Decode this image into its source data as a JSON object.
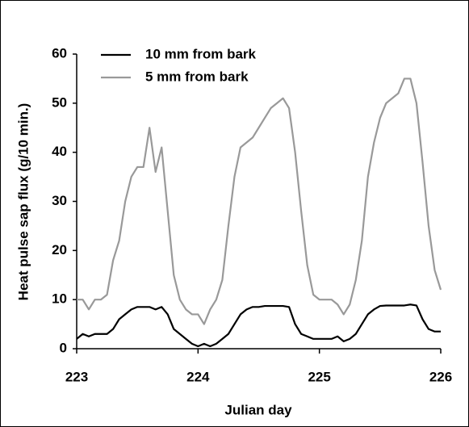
{
  "chart_data": {
    "type": "line",
    "x_label": "Julian day",
    "y_label": "Heat pulse sap flux (g/10 min.)",
    "x": [
      223,
      223.05,
      223.1,
      223.15,
      223.2,
      223.25,
      223.3,
      223.35,
      223.4,
      223.45,
      223.5,
      223.55,
      223.6,
      223.65,
      223.7,
      223.75,
      223.8,
      223.85,
      223.9,
      223.95,
      224,
      224.05,
      224.1,
      224.15,
      224.2,
      224.25,
      224.3,
      224.35,
      224.4,
      224.45,
      224.5,
      224.55,
      224.6,
      224.65,
      224.7,
      224.75,
      224.8,
      224.85,
      224.9,
      224.95,
      225,
      225.05,
      225.1,
      225.15,
      225.2,
      225.25,
      225.3,
      225.35,
      225.4,
      225.45,
      225.5,
      225.55,
      225.6,
      225.65,
      225.7,
      225.75,
      225.8,
      225.85,
      225.9,
      225.95,
      226
    ],
    "series": [
      {
        "name": "10 mm from bark",
        "color": "#000000",
        "values": [
          2,
          3,
          2.5,
          3,
          3,
          3,
          4,
          6,
          7,
          8,
          8.5,
          8.5,
          8.5,
          8,
          8.5,
          7,
          4,
          3,
          2,
          1,
          0.5,
          1,
          0.5,
          1,
          2,
          3,
          5,
          7,
          8,
          8.5,
          8.5,
          8.7,
          8.7,
          8.7,
          8.7,
          8.5,
          5,
          3,
          2.5,
          2,
          2,
          2,
          2,
          2.5,
          1.5,
          2,
          3,
          5,
          7,
          8,
          8.7,
          8.8,
          8.8,
          8.8,
          8.8,
          9,
          8.8,
          6,
          4,
          3.5,
          3.5
        ]
      },
      {
        "name": "5 mm from bark",
        "color": "#999999",
        "values": [
          10,
          10,
          8,
          10,
          10,
          11,
          18,
          22,
          30,
          35,
          37,
          37,
          45,
          36,
          41,
          28,
          15,
          10,
          8,
          7,
          7,
          5,
          8,
          10,
          14,
          25,
          35,
          41,
          42,
          43,
          45,
          47,
          49,
          50,
          51,
          49,
          40,
          28,
          17,
          11,
          10,
          10,
          10,
          9,
          7,
          9,
          14,
          22,
          35,
          42,
          47,
          50,
          51,
          52,
          55,
          55,
          50,
          38,
          25,
          16,
          12
        ]
      }
    ],
    "xlim": [
      223,
      226
    ],
    "xticks": [
      223,
      224,
      225,
      226
    ],
    "ylim": [
      0,
      60
    ],
    "yticks": [
      0,
      10,
      20,
      30,
      40,
      50,
      60
    ],
    "grid": false,
    "legend": "top-left"
  }
}
